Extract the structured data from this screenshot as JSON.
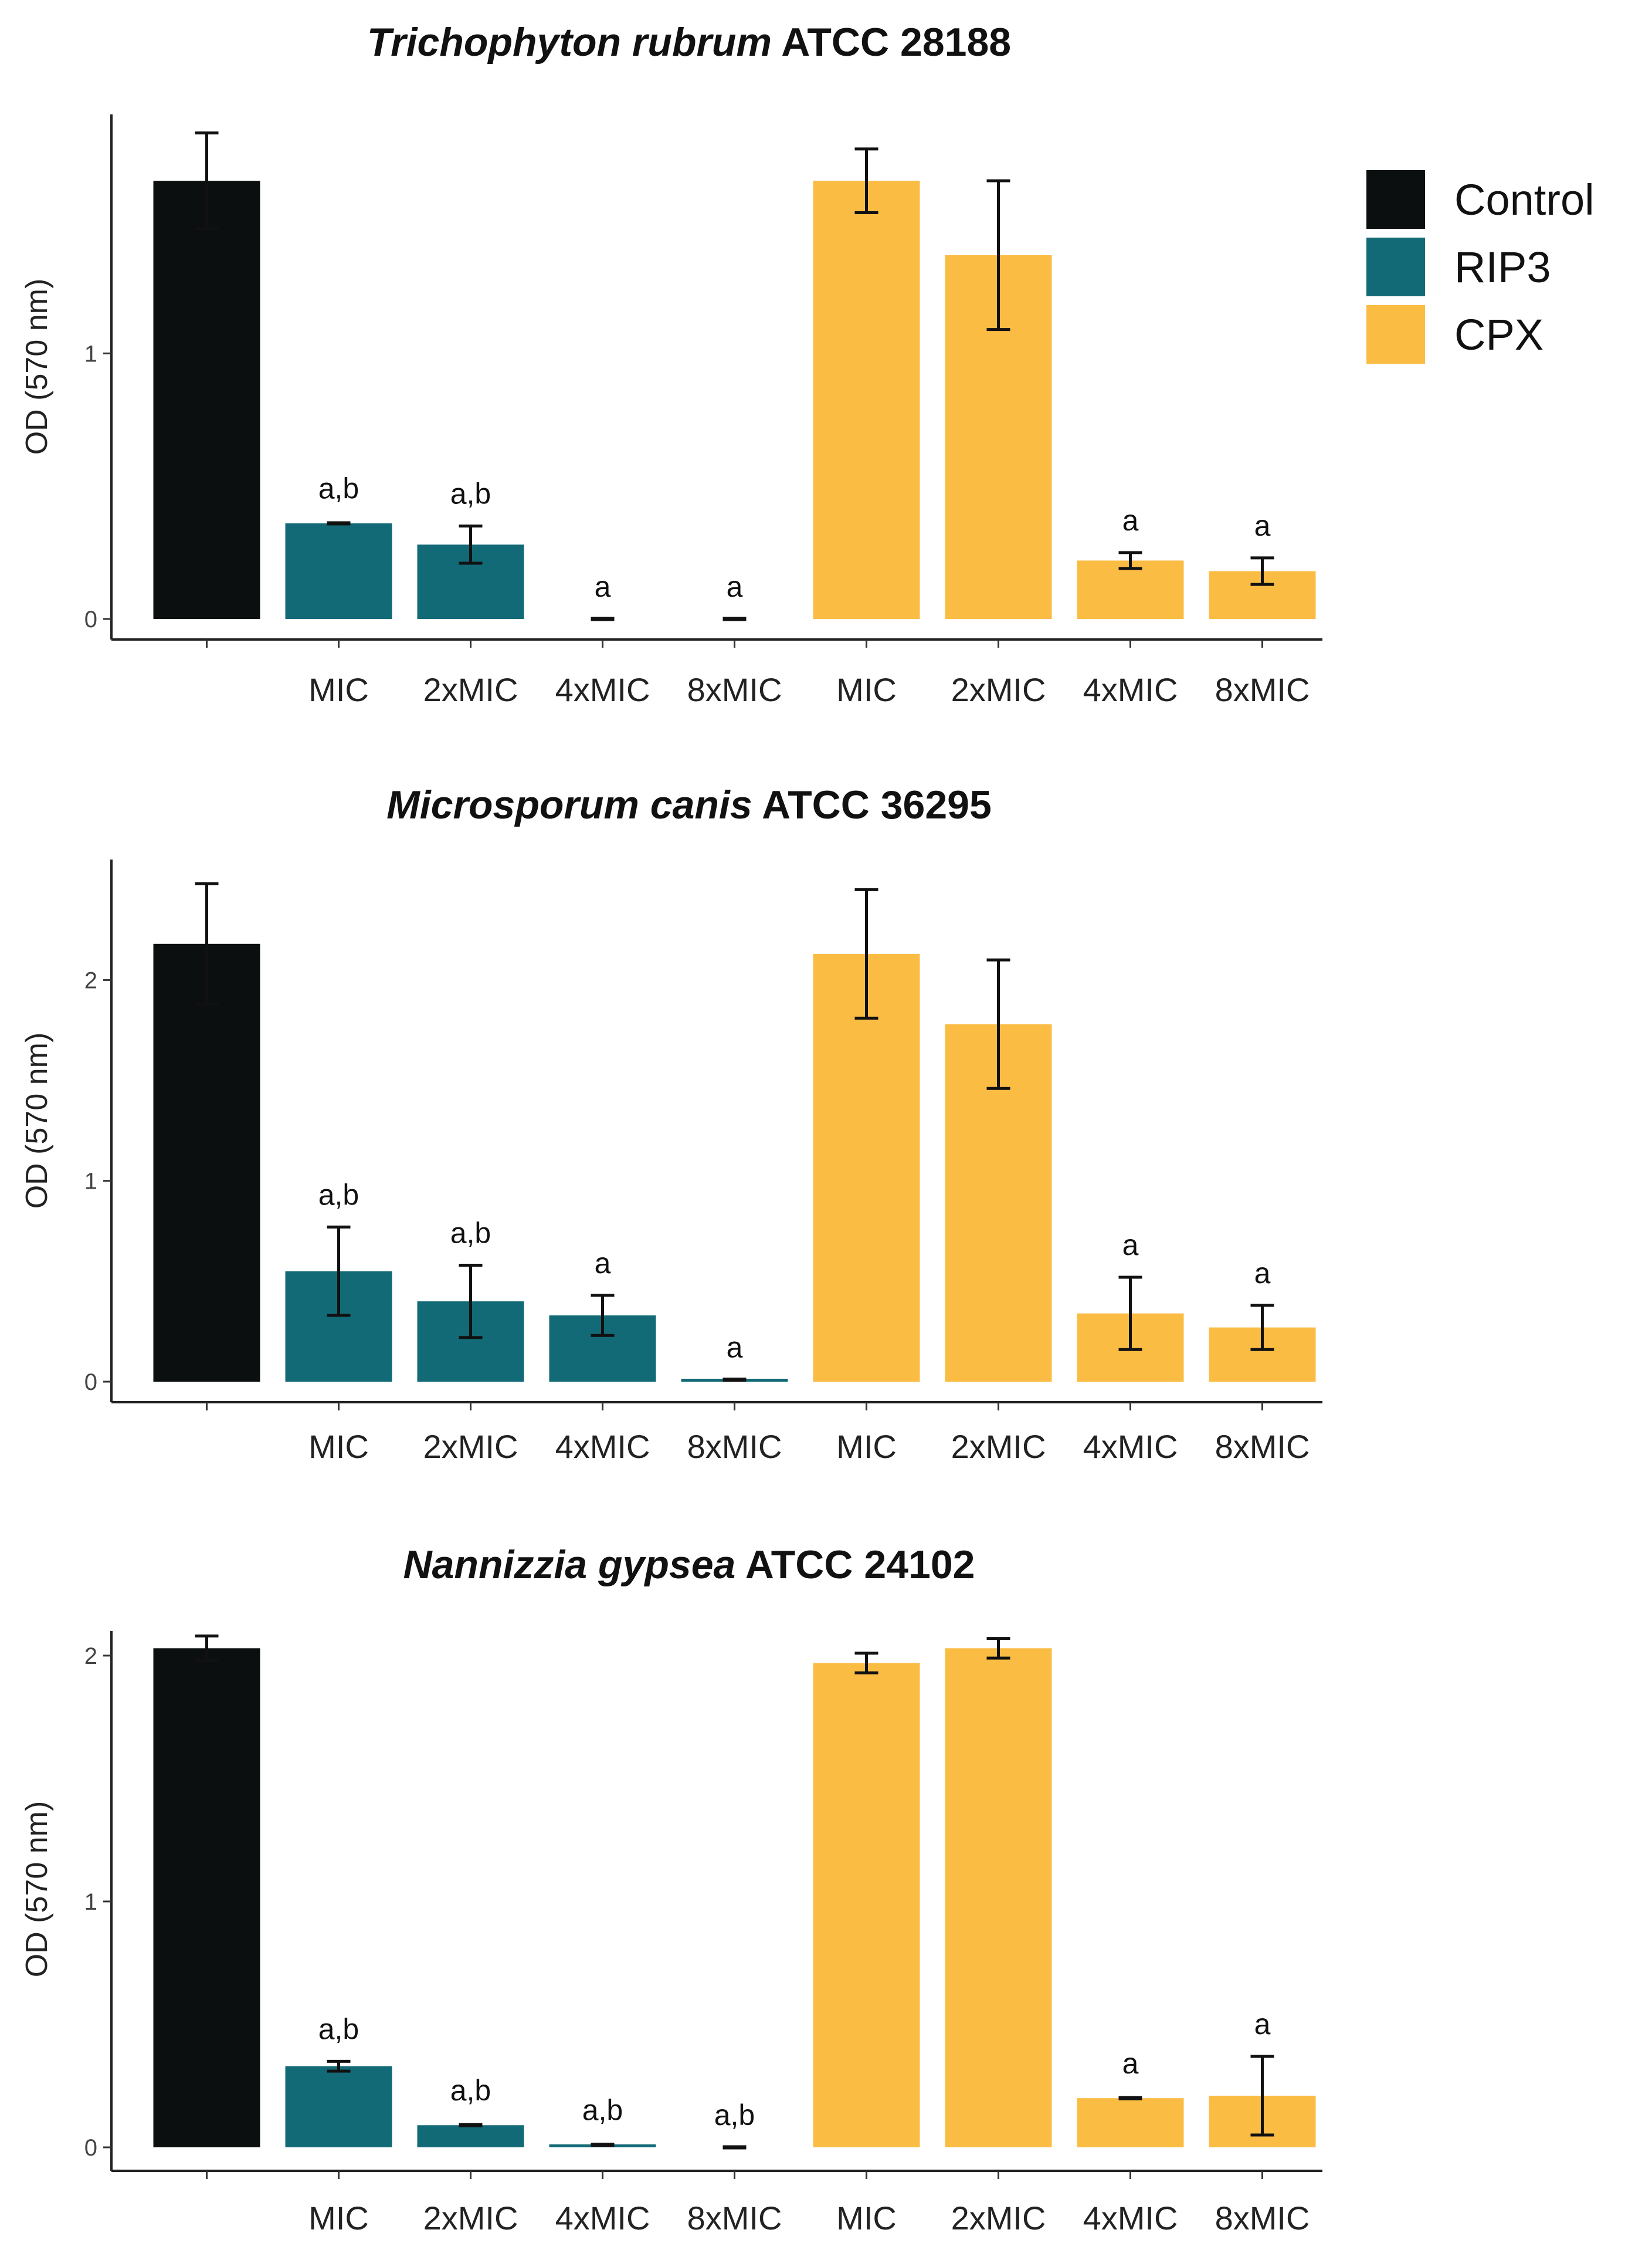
{
  "colors": {
    "Control": "#0b0f0f",
    "RIP3": "#136a77",
    "CPX": "#fbbc44"
  },
  "legend": [
    {
      "key": "Control",
      "label": "Control"
    },
    {
      "key": "RIP3",
      "label": "RIP3"
    },
    {
      "key": "CPX",
      "label": "CPX"
    }
  ],
  "chart_data": [
    {
      "type": "bar",
      "title_species": "Trichophyton rubrum",
      "title_strain": "ATCC 28188",
      "ylabel": "OD (570 nm)",
      "ylim": [
        0,
        1.9
      ],
      "yticks": [
        0,
        1
      ],
      "bars": [
        {
          "group": "Control",
          "label": "",
          "value": 1.65,
          "err": 0.18,
          "sig": ""
        },
        {
          "group": "RIP3",
          "label": "MIC",
          "value": 0.36,
          "err": 0.01,
          "sig": "a,b"
        },
        {
          "group": "RIP3",
          "label": "2xMIC",
          "value": 0.28,
          "err": 0.07,
          "sig": "a,b"
        },
        {
          "group": "RIP3",
          "label": "4xMIC",
          "value": 0.0,
          "err": 0.0,
          "sig": "a"
        },
        {
          "group": "RIP3",
          "label": "8xMIC",
          "value": 0.0,
          "err": 0.0,
          "sig": "a"
        },
        {
          "group": "CPX",
          "label": "MIC",
          "value": 1.65,
          "err": 0.12,
          "sig": ""
        },
        {
          "group": "CPX",
          "label": "2xMIC",
          "value": 1.37,
          "err": 0.28,
          "sig": ""
        },
        {
          "group": "CPX",
          "label": "4xMIC",
          "value": 0.22,
          "err": 0.03,
          "sig": "a"
        },
        {
          "group": "CPX",
          "label": "8xMIC",
          "value": 0.18,
          "err": 0.05,
          "sig": "a"
        }
      ]
    },
    {
      "type": "bar",
      "title_species": "Microsporum canis",
      "title_strain": "ATCC 36295",
      "ylabel": "OD (570 nm)",
      "ylim": [
        0,
        2.6
      ],
      "yticks": [
        0,
        1,
        2
      ],
      "bars": [
        {
          "group": "Control",
          "label": "",
          "value": 2.18,
          "err": 0.3,
          "sig": ""
        },
        {
          "group": "RIP3",
          "label": "MIC",
          "value": 0.55,
          "err": 0.22,
          "sig": "a,b"
        },
        {
          "group": "RIP3",
          "label": "2xMIC",
          "value": 0.4,
          "err": 0.18,
          "sig": "a,b"
        },
        {
          "group": "RIP3",
          "label": "4xMIC",
          "value": 0.33,
          "err": 0.1,
          "sig": "a"
        },
        {
          "group": "RIP3",
          "label": "8xMIC",
          "value": 0.01,
          "err": 0.0,
          "sig": "a"
        },
        {
          "group": "CPX",
          "label": "MIC",
          "value": 2.13,
          "err": 0.32,
          "sig": ""
        },
        {
          "group": "CPX",
          "label": "2xMIC",
          "value": 1.78,
          "err": 0.32,
          "sig": ""
        },
        {
          "group": "CPX",
          "label": "4xMIC",
          "value": 0.34,
          "err": 0.18,
          "sig": "a"
        },
        {
          "group": "CPX",
          "label": "8xMIC",
          "value": 0.27,
          "err": 0.11,
          "sig": "a"
        }
      ]
    },
    {
      "type": "bar",
      "title_species": "Nannizzia gypsea",
      "title_strain": "ATCC 24102",
      "ylabel": "OD (570 nm)",
      "ylim": [
        0,
        2.1
      ],
      "yticks": [
        0,
        1,
        2
      ],
      "bars": [
        {
          "group": "Control",
          "label": "",
          "value": 2.03,
          "err": 0.05,
          "sig": ""
        },
        {
          "group": "RIP3",
          "label": "MIC",
          "value": 0.33,
          "err": 0.02,
          "sig": "a,b"
        },
        {
          "group": "RIP3",
          "label": "2xMIC",
          "value": 0.09,
          "err": 0.01,
          "sig": "a,b"
        },
        {
          "group": "RIP3",
          "label": "4xMIC",
          "value": 0.01,
          "err": 0.01,
          "sig": "a,b"
        },
        {
          "group": "RIP3",
          "label": "8xMIC",
          "value": 0.0,
          "err": 0.0,
          "sig": "a,b"
        },
        {
          "group": "CPX",
          "label": "MIC",
          "value": 1.97,
          "err": 0.04,
          "sig": ""
        },
        {
          "group": "CPX",
          "label": "2xMIC",
          "value": 2.03,
          "err": 0.04,
          "sig": ""
        },
        {
          "group": "CPX",
          "label": "4xMIC",
          "value": 0.2,
          "err": 0.01,
          "sig": "a"
        },
        {
          "group": "CPX",
          "label": "8xMIC",
          "value": 0.21,
          "err": 0.16,
          "sig": "a"
        }
      ]
    }
  ]
}
